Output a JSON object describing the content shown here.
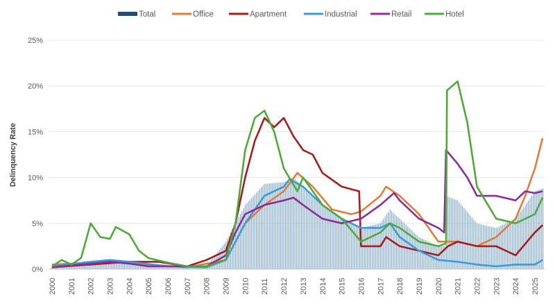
{
  "chart_data": {
    "type": "line",
    "title": "",
    "xlabel": "",
    "ylabel": "Delinquency Rate",
    "xlim": [
      2000,
      2025.5
    ],
    "ylim": [
      0,
      25
    ],
    "y_ticks": [
      "0%",
      "5%",
      "10%",
      "15%",
      "20%",
      "25%"
    ],
    "y_tick_values": [
      0,
      5,
      10,
      15,
      20,
      25
    ],
    "x_ticks": [
      "2000",
      "2001",
      "2002",
      "2003",
      "2004",
      "2005",
      "2006",
      "2007",
      "2008",
      "2009",
      "2010",
      "2011",
      "2012",
      "2013",
      "2014",
      "2015",
      "2016",
      "2017",
      "2018",
      "2019",
      "2020",
      "2021",
      "2022",
      "2023",
      "2024",
      "2025"
    ],
    "grid": "horizontal",
    "legend_position": "top",
    "series": [
      {
        "name": "Total",
        "kind": "bar",
        "color": "#1f4e79",
        "points": [
          [
            2000,
            0.3
          ],
          [
            2002,
            0.6
          ],
          [
            2004,
            0.8
          ],
          [
            2006,
            0.4
          ],
          [
            2008,
            0.3
          ],
          [
            2009,
            3
          ],
          [
            2010,
            7
          ],
          [
            2011,
            9.3
          ],
          [
            2012,
            9.5
          ],
          [
            2012.5,
            10
          ],
          [
            2013,
            9
          ],
          [
            2014,
            7
          ],
          [
            2015,
            5.5
          ],
          [
            2016,
            4.5
          ],
          [
            2017,
            5
          ],
          [
            2017.5,
            6.5
          ],
          [
            2018,
            5.5
          ],
          [
            2019,
            3.5
          ],
          [
            2020,
            2.5
          ],
          [
            2020.35,
            2.5
          ],
          [
            2020.4,
            8
          ],
          [
            2021,
            7.5
          ],
          [
            2022,
            5
          ],
          [
            2023,
            4.5
          ],
          [
            2024,
            5.5
          ],
          [
            2025,
            8.5
          ],
          [
            2025.4,
            8.8
          ]
        ]
      },
      {
        "name": "Office",
        "kind": "line",
        "color": "#e07b39",
        "points": [
          [
            2000,
            0.5
          ],
          [
            2003,
            0.8
          ],
          [
            2005,
            0.5
          ],
          [
            2007,
            0.2
          ],
          [
            2009,
            1
          ],
          [
            2010,
            5
          ],
          [
            2011,
            7
          ],
          [
            2012,
            8.5
          ],
          [
            2012.7,
            10.5
          ],
          [
            2013.5,
            9
          ],
          [
            2014.5,
            6.5
          ],
          [
            2015.5,
            6
          ],
          [
            2016,
            6.3
          ],
          [
            2017,
            8
          ],
          [
            2017.3,
            9
          ],
          [
            2018,
            8
          ],
          [
            2019,
            6
          ],
          [
            2020,
            3
          ],
          [
            2021,
            3
          ],
          [
            2022,
            2.5
          ],
          [
            2023,
            3.5
          ],
          [
            2024,
            5.5
          ],
          [
            2024.5,
            8
          ],
          [
            2025,
            11
          ],
          [
            2025.4,
            14.3
          ]
        ]
      },
      {
        "name": "Apartment",
        "kind": "line",
        "color": "#a61c1c",
        "points": [
          [
            2000,
            0.2
          ],
          [
            2002,
            0.5
          ],
          [
            2004,
            0.8
          ],
          [
            2005.5,
            0.8
          ],
          [
            2007,
            0.3
          ],
          [
            2008,
            1
          ],
          [
            2009,
            2
          ],
          [
            2009.5,
            5
          ],
          [
            2010,
            10
          ],
          [
            2010.5,
            14
          ],
          [
            2011,
            16.5
          ],
          [
            2011.5,
            15.5
          ],
          [
            2012,
            16.5
          ],
          [
            2012.5,
            14.5
          ],
          [
            2013,
            13
          ],
          [
            2013.5,
            12.5
          ],
          [
            2014,
            10.5
          ],
          [
            2015,
            9
          ],
          [
            2015.9,
            8.5
          ],
          [
            2016,
            2.5
          ],
          [
            2017,
            2.5
          ],
          [
            2017.3,
            3.5
          ],
          [
            2018,
            2.5
          ],
          [
            2019,
            2
          ],
          [
            2020,
            1.5
          ],
          [
            2020.5,
            2.5
          ],
          [
            2021,
            3
          ],
          [
            2022,
            2.5
          ],
          [
            2023,
            2.5
          ],
          [
            2024,
            1.5
          ],
          [
            2025,
            4
          ],
          [
            2025.4,
            4.8
          ]
        ]
      },
      {
        "name": "Industrial",
        "kind": "line",
        "color": "#3b9ad9",
        "points": [
          [
            2000,
            0.3
          ],
          [
            2002,
            0.8
          ],
          [
            2003,
            1
          ],
          [
            2004,
            0.8
          ],
          [
            2006,
            0.3
          ],
          [
            2008,
            0.2
          ],
          [
            2009,
            1
          ],
          [
            2010,
            5
          ],
          [
            2011,
            8
          ],
          [
            2012,
            9
          ],
          [
            2012.3,
            9.8
          ],
          [
            2013,
            9
          ],
          [
            2014,
            7
          ],
          [
            2015,
            5.5
          ],
          [
            2016,
            4.5
          ],
          [
            2017,
            4.5
          ],
          [
            2017.5,
            5
          ],
          [
            2018,
            3.5
          ],
          [
            2019,
            2
          ],
          [
            2020,
            1
          ],
          [
            2021,
            0.8
          ],
          [
            2022,
            0.5
          ],
          [
            2023,
            0.3
          ],
          [
            2024,
            0.5
          ],
          [
            2025,
            0.5
          ],
          [
            2025.4,
            1
          ]
        ]
      },
      {
        "name": "Retail",
        "kind": "line",
        "color": "#8e2c9a",
        "points": [
          [
            2000,
            0.2
          ],
          [
            2003,
            0.8
          ],
          [
            2004,
            0.6
          ],
          [
            2005,
            0.3
          ],
          [
            2008,
            0.3
          ],
          [
            2009,
            1.5
          ],
          [
            2009.5,
            4
          ],
          [
            2010,
            6
          ],
          [
            2011,
            7
          ],
          [
            2012,
            7.5
          ],
          [
            2012.5,
            7.8
          ],
          [
            2013,
            7
          ],
          [
            2014,
            5.5
          ],
          [
            2015,
            5
          ],
          [
            2016,
            5.5
          ],
          [
            2017,
            7
          ],
          [
            2017.7,
            8.3
          ],
          [
            2018,
            7.5
          ],
          [
            2019,
            5.5
          ],
          [
            2020,
            4.5
          ],
          [
            2020.3,
            4
          ],
          [
            2020.4,
            13
          ],
          [
            2021,
            11.5
          ],
          [
            2021.5,
            10
          ],
          [
            2022,
            8
          ],
          [
            2023,
            8
          ],
          [
            2024,
            7.5
          ],
          [
            2024.5,
            8.5
          ],
          [
            2025,
            8.3
          ],
          [
            2025.4,
            8.5
          ]
        ]
      },
      {
        "name": "Hotel",
        "kind": "line",
        "color": "#4ea93b",
        "points": [
          [
            2000,
            0.3
          ],
          [
            2000.5,
            1
          ],
          [
            2001,
            0.5
          ],
          [
            2001.5,
            1.2
          ],
          [
            2002,
            5
          ],
          [
            2002.5,
            3.5
          ],
          [
            2003,
            3.3
          ],
          [
            2003.3,
            4.6
          ],
          [
            2004,
            3.8
          ],
          [
            2004.5,
            2
          ],
          [
            2005,
            1.2
          ],
          [
            2006,
            0.7
          ],
          [
            2007,
            0.3
          ],
          [
            2008,
            0.3
          ],
          [
            2009,
            1
          ],
          [
            2009.5,
            5
          ],
          [
            2010,
            13
          ],
          [
            2010.5,
            16.5
          ],
          [
            2011,
            17.3
          ],
          [
            2011.5,
            15
          ],
          [
            2012,
            11
          ],
          [
            2012.7,
            8.5
          ],
          [
            2013,
            10
          ],
          [
            2014,
            7
          ],
          [
            2015,
            5.5
          ],
          [
            2016,
            3
          ],
          [
            2017,
            4
          ],
          [
            2017.5,
            5
          ],
          [
            2018,
            4.5
          ],
          [
            2019,
            3
          ],
          [
            2020,
            2.5
          ],
          [
            2020.4,
            2.8
          ],
          [
            2020.45,
            19.5
          ],
          [
            2021,
            20.5
          ],
          [
            2021.5,
            16
          ],
          [
            2022,
            9
          ],
          [
            2023,
            5.5
          ],
          [
            2024,
            5
          ],
          [
            2025,
            6
          ],
          [
            2025.4,
            7.8
          ]
        ]
      }
    ]
  }
}
